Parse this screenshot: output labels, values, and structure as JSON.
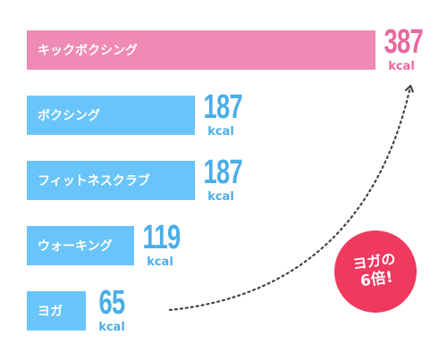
{
  "chart_data": {
    "type": "bar",
    "orientation": "horizontal",
    "categories": [
      "キックボクシング",
      "ボクシング",
      "フィットネスクラブ",
      "ウォーキング",
      "ヨガ"
    ],
    "values": [
      387,
      187,
      187,
      119,
      65
    ],
    "unit": "kcal",
    "value_labels": [
      "387",
      "187",
      "187",
      "119",
      "65"
    ],
    "highlight_category": "キックボクシング",
    "colors": {
      "highlight": "#ee8ab3",
      "default": "#69c5f9",
      "highlight_text": "#e9689d",
      "default_text": "#4aaee8",
      "badge": "#f0395e",
      "arrow": "#444444"
    },
    "annotation": {
      "line1": "ヨガの",
      "line2": "6倍!",
      "from": "ヨガ",
      "to": "キックボクシング"
    },
    "grid": false,
    "legend": "none"
  }
}
